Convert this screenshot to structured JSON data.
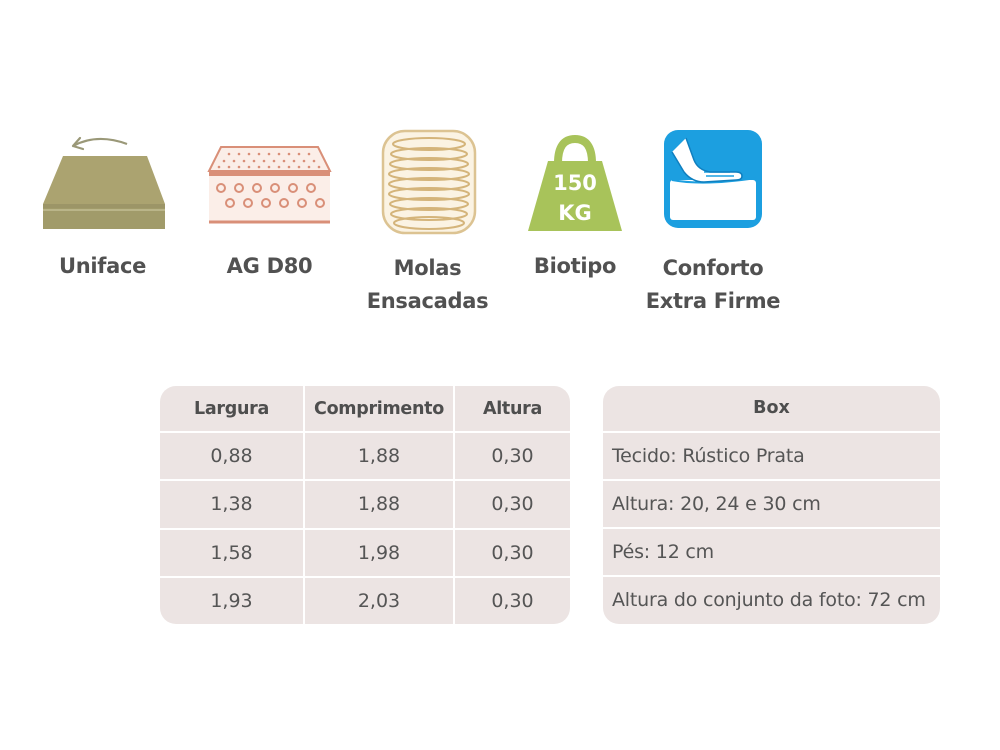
{
  "features": [
    {
      "icon": "mattress-flip-icon",
      "label_lines": [
        "Uniface"
      ]
    },
    {
      "icon": "foam-layer-icon",
      "label_lines": [
        "AG D80"
      ]
    },
    {
      "icon": "pocket-spring-icon",
      "label_lines": [
        "Molas",
        "Ensacadas"
      ]
    },
    {
      "icon": "weight-icon",
      "icon_text_top": "150",
      "icon_text_bottom": "KG",
      "label_lines": [
        "Biotipo"
      ]
    },
    {
      "icon": "hand-pressing-icon",
      "label_lines": [
        "Conforto",
        "Extra Firme"
      ]
    }
  ],
  "dimensions_table": {
    "headers": [
      "Largura",
      "Comprimento",
      "Altura"
    ],
    "rows": [
      [
        "0,88",
        "1,88",
        "0,30"
      ],
      [
        "1,38",
        "1,88",
        "0,30"
      ],
      [
        "1,58",
        "1,98",
        "0,30"
      ],
      [
        "1,93",
        "2,03",
        "0,30"
      ]
    ]
  },
  "box_table": {
    "title": "Box",
    "rows": [
      "Tecido: Rústico Prata",
      "Altura: 20, 24 e 30 cm",
      "Pés: 12 cm",
      "Altura do conjunto da foto: 72 cm"
    ]
  },
  "colors": {
    "panel_bg": "#ece4e3",
    "uniface_green": "#a8a26f",
    "foam_salmon": "#dc9a82",
    "spring_gold": "#d9c08e",
    "weight_green": "#a9c45a",
    "comfort_blue": "#1b9fe0"
  }
}
